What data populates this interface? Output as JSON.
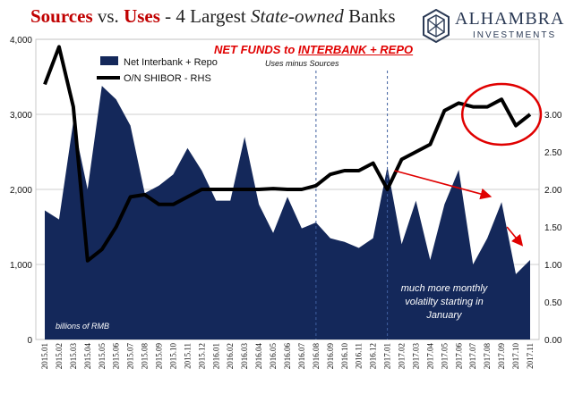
{
  "title": {
    "part1": "Sources",
    "part2": " vs. ",
    "part3": "Uses",
    "part4": " - 4 Largest ",
    "part5": "State-owned",
    "part6": " Banks"
  },
  "logo": {
    "name": "ALHAMBRA",
    "sub": "INVESTMENTS"
  },
  "annotation_title": "NET FUNDS to INTERBANK + REPO",
  "annotation_title_pre": "NET FUNDS to ",
  "annotation_title_u": "INTERBANK + REPO",
  "annotation_sub": "Uses minus Sources",
  "unit_note": "billions of RMB",
  "volatility_note": "much more monthly volatilty starting in January",
  "colors": {
    "area": "#14285a",
    "line": "#000000",
    "title_red": "#c00000",
    "annot_red": "#e00000",
    "circle": "#e00000",
    "grid": "#bfbfbf"
  },
  "chart_data": {
    "type": "area",
    "x": [
      "2015.01",
      "2015.02",
      "2015.03",
      "2015.04",
      "2015.05",
      "2015.06",
      "2015.07",
      "2015.08",
      "2015.09",
      "2015.10",
      "2015.11",
      "2015.12",
      "2016.01",
      "2016.02",
      "2016.03",
      "2016.04",
      "2016.05",
      "2016.06",
      "2016.07",
      "2016.08",
      "2016.09",
      "2016.10",
      "2016.11",
      "2016.12",
      "2017.01",
      "2017.02",
      "2017.03",
      "2017.04",
      "2017.05",
      "2017.06",
      "2017.07",
      "2017.08",
      "2017.09",
      "2017.10",
      "2017.11"
    ],
    "series": [
      {
        "name": "Net Interbank + Repo",
        "axis": "left",
        "style": "area",
        "values": [
          1720,
          1600,
          2900,
          2000,
          3380,
          3200,
          2850,
          1950,
          2050,
          2200,
          2550,
          2250,
          1850,
          1850,
          2700,
          1800,
          1420,
          1900,
          1480,
          1560,
          1350,
          1300,
          1220,
          1350,
          2300,
          1270,
          1850,
          1060,
          1800,
          2260,
          1000,
          1350,
          1830,
          870,
          1060
        ]
      },
      {
        "name": "O/N SHIBOR - RHS",
        "axis": "right",
        "style": "line",
        "values": [
          3.4,
          3.9,
          3.1,
          1.05,
          1.2,
          1.5,
          1.9,
          1.93,
          1.8,
          1.8,
          1.9,
          2.0,
          2.0,
          2.0,
          2.0,
          2.0,
          2.01,
          2.0,
          2.0,
          2.05,
          2.2,
          2.25,
          2.25,
          2.35,
          2.0,
          2.4,
          2.5,
          2.6,
          3.05,
          3.15,
          3.1,
          3.1,
          3.2,
          2.85,
          3.0
        ]
      }
    ],
    "y_left": {
      "min": 0,
      "max": 4000,
      "ticks": [
        "0",
        "1,000",
        "2,000",
        "3,000",
        "4,000"
      ]
    },
    "y_right": {
      "min": 0.0,
      "max": 4.0,
      "ticks": [
        "0.00",
        "0.50",
        "1.00",
        "1.50",
        "2.00",
        "2.50",
        "3.00"
      ]
    },
    "markers": [
      "2016.08",
      "2017.01"
    ],
    "grid": true,
    "legend": "top-left"
  }
}
